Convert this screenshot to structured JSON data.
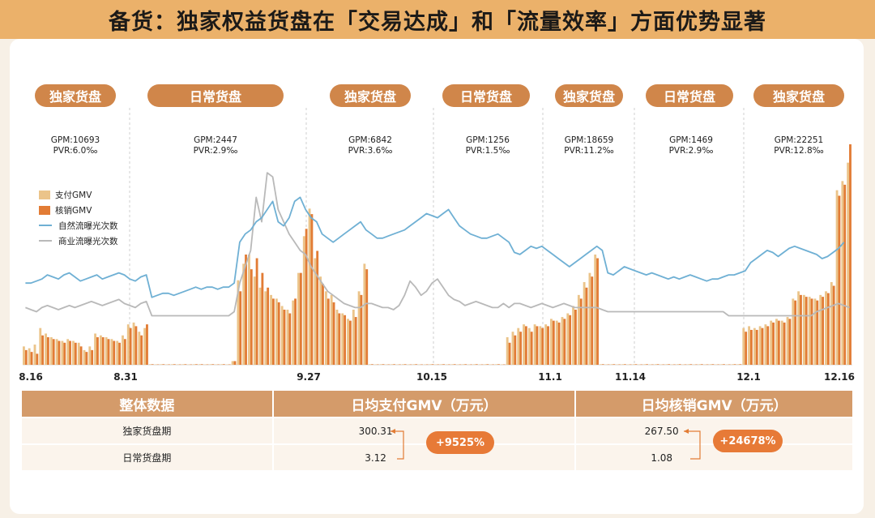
{
  "header": {
    "title": "备货：独家权益货盘在「交易达成」和「流量效率」方面优势显著"
  },
  "periods": [
    {
      "label": "独家货盘",
      "gpm": "GPM:10693",
      "pvr": "PVR:6.0‰"
    },
    {
      "label": "日常货盘",
      "gpm": "GPM:2447",
      "pvr": "PVR:2.9‰"
    },
    {
      "label": "独家货盘",
      "gpm": "GPM:6842",
      "pvr": "PVR:3.6‰"
    },
    {
      "label": "日常货盘",
      "gpm": "GPM:1256",
      "pvr": "PVR:1.5‰"
    },
    {
      "label": "独家货盘",
      "gpm": "GPM:18659",
      "pvr": "PVR:11.2‰"
    },
    {
      "label": "日常货盘",
      "gpm": "GPM:1469",
      "pvr": "PVR:2.9‰"
    },
    {
      "label": "独家货盘",
      "gpm": "GPM:22251",
      "pvr": "PVR:12.8‰"
    }
  ],
  "legend": {
    "pay_gmv": "支付GMV",
    "verify_gmv": "核销GMV",
    "natural": "自然流曝光次数",
    "commercial": "商业流曝光次数"
  },
  "x_labels": [
    "8.16",
    "8.31",
    "9.27",
    "10.15",
    "11.1",
    "11.14",
    "12.1",
    "12.16"
  ],
  "colors": {
    "pay_gmv": "#ebc48a",
    "verify_gmv": "#e27c35",
    "natural": "#6fb0d4",
    "commercial": "#b9b9b9",
    "pill": "#d0864a",
    "header": "#ebb16a"
  },
  "chart_data": {
    "type": "bar+line",
    "series": [
      {
        "name": "支付GMV",
        "type": "bar",
        "values": [
          10,
          9,
          11,
          20,
          17,
          15,
          14,
          13,
          14,
          13,
          12,
          8,
          10,
          17,
          16,
          15,
          14,
          13,
          16,
          22,
          23,
          18,
          20,
          0.3,
          0.2,
          0.3,
          0.2,
          0.3,
          0.2,
          0.3,
          0.2,
          0.3,
          0.3,
          0.2,
          0.3,
          0.2,
          0.3,
          0.2,
          2,
          46,
          55,
          60,
          48,
          42,
          40,
          38,
          36,
          32,
          30,
          35,
          50,
          70,
          85,
          58,
          48,
          40,
          38,
          30,
          28,
          25,
          30,
          40,
          55,
          0.3,
          0.2,
          0.3,
          0.2,
          0.3,
          0.2,
          0.3,
          0.2,
          0.3,
          0.2,
          0.2,
          0.3,
          0.2,
          0.3,
          0.2,
          0.3,
          0.2,
          0.3,
          0.2,
          0.3,
          0.2,
          0.3,
          0.2,
          0.3,
          0.2,
          15,
          18,
          20,
          22,
          20,
          22,
          21,
          22,
          25,
          24,
          26,
          28,
          32,
          38,
          45,
          50,
          60,
          0.3,
          0.2,
          0.3,
          0.2,
          0.3,
          0.2,
          0.3,
          0.2,
          0.3,
          0.2,
          0.3,
          0.2,
          0.3,
          0.2,
          0.3,
          0.2,
          0.3,
          0.2,
          0.3,
          0.2,
          0.3,
          0.2,
          0.3,
          0.2,
          0.3,
          0.3,
          20,
          21,
          20,
          21,
          22,
          24,
          25,
          24,
          26,
          36,
          40,
          38,
          37,
          36,
          38,
          40,
          45,
          95,
          100,
          110
        ]
      },
      {
        "name": "核销GMV",
        "type": "bar",
        "values": [
          8,
          7,
          6,
          16,
          15,
          14,
          13,
          12,
          13,
          12,
          10,
          7,
          8,
          15,
          15,
          14,
          13,
          12,
          14,
          20,
          21,
          16,
          22,
          0.3,
          0.2,
          0.3,
          0.2,
          0.3,
          0.2,
          0.3,
          0.2,
          0.3,
          0.3,
          0.2,
          0.3,
          0.2,
          0.3,
          0.2,
          2,
          40,
          60,
          52,
          58,
          50,
          42,
          36,
          34,
          30,
          28,
          36,
          50,
          74,
          82,
          62,
          44,
          36,
          34,
          28,
          27,
          24,
          26,
          38,
          52,
          0.3,
          0.2,
          0.3,
          0.2,
          0.3,
          0.2,
          0.3,
          0.2,
          0.3,
          0.2,
          0.2,
          0.3,
          0.2,
          0.3,
          0.2,
          0.3,
          0.2,
          0.3,
          0.2,
          0.3,
          0.2,
          0.3,
          0.2,
          0.3,
          0.2,
          12,
          16,
          18,
          21,
          18,
          21,
          20,
          21,
          24,
          23,
          25,
          27,
          30,
          36,
          42,
          48,
          58,
          0.3,
          0.2,
          0.3,
          0.2,
          0.3,
          0.2,
          0.3,
          0.2,
          0.3,
          0.2,
          0.3,
          0.2,
          0.3,
          0.2,
          0.3,
          0.2,
          0.3,
          0.2,
          0.3,
          0.2,
          0.3,
          0.2,
          0.3,
          0.2,
          0.3,
          0.3,
          18,
          19,
          19,
          20,
          21,
          23,
          24,
          23,
          25,
          35,
          38,
          37,
          36,
          35,
          37,
          39,
          43,
          92,
          98,
          120
        ]
      },
      {
        "name": "自然流曝光次数",
        "type": "line",
        "values": [
          40,
          40,
          41,
          42,
          44,
          43,
          42,
          44,
          45,
          43,
          41,
          42,
          43,
          44,
          42,
          43,
          44,
          45,
          44,
          42,
          41,
          43,
          44,
          33,
          34,
          35,
          35,
          34,
          35,
          36,
          37,
          38,
          37,
          38,
          38,
          37,
          38,
          38,
          40,
          60,
          64,
          66,
          70,
          72,
          76,
          80,
          70,
          68,
          72,
          80,
          82,
          76,
          72,
          70,
          64,
          62,
          60,
          62,
          64,
          66,
          68,
          70,
          66,
          64,
          62,
          62,
          63,
          64,
          65,
          66,
          68,
          70,
          72,
          74,
          73,
          72,
          74,
          76,
          72,
          68,
          66,
          64,
          63,
          62,
          62,
          63,
          64,
          62,
          60,
          55,
          54,
          56,
          58,
          57,
          58,
          56,
          54,
          52,
          50,
          48,
          50,
          52,
          54,
          56,
          58,
          56,
          45,
          44,
          46,
          48,
          47,
          46,
          45,
          44,
          45,
          44,
          43,
          42,
          43,
          42,
          43,
          44,
          43,
          42,
          41,
          42,
          42,
          43,
          44,
          44,
          45,
          46,
          50,
          52,
          54,
          56,
          55,
          53,
          55,
          57,
          58,
          57,
          56,
          55,
          54,
          52,
          53,
          55,
          57,
          60
        ]
      },
      {
        "name": "商业流曝光次数",
        "type": "line",
        "values": [
          28,
          27,
          26,
          28,
          29,
          28,
          27,
          28,
          29,
          28,
          29,
          30,
          31,
          30,
          29,
          30,
          31,
          32,
          30,
          29,
          28,
          30,
          31,
          24,
          24,
          24,
          24,
          24,
          24,
          24,
          24,
          24,
          24,
          24,
          24,
          24,
          24,
          24,
          26,
          40,
          48,
          56,
          82,
          70,
          94,
          92,
          76,
          70,
          64,
          60,
          56,
          54,
          48,
          44,
          40,
          36,
          34,
          32,
          30,
          29,
          28,
          28,
          30,
          30,
          29,
          28,
          28,
          27,
          29,
          34,
          41,
          38,
          34,
          36,
          40,
          42,
          38,
          34,
          32,
          31,
          29,
          30,
          31,
          30,
          29,
          28,
          28,
          30,
          28,
          30,
          30,
          29,
          28,
          29,
          30,
          29,
          28,
          29,
          30,
          29,
          28,
          28,
          28,
          28,
          28,
          27,
          26,
          26,
          26,
          26,
          26,
          26,
          26,
          26,
          26,
          26,
          26,
          26,
          26,
          26,
          26,
          26,
          26,
          26,
          26,
          26,
          26,
          26,
          24,
          24,
          24,
          24,
          24,
          24,
          24,
          24,
          24,
          24,
          24,
          24,
          24,
          24,
          24,
          24,
          26,
          27,
          28,
          29,
          30,
          29,
          28
        ]
      }
    ],
    "x_labels": [
      "8.16",
      "8.31",
      "9.27",
      "10.15",
      "11.1",
      "11.14",
      "12.1",
      "12.16"
    ]
  },
  "table": {
    "headers": [
      "整体数据",
      "日均支付GMV（万元）",
      "日均核销GMV（万元）"
    ],
    "rows": [
      {
        "label": "独家货盘期",
        "pay": "300.31",
        "verify": "267.50"
      },
      {
        "label": "日常货盘期",
        "pay": "3.12",
        "verify": "1.08"
      }
    ],
    "badges": {
      "pay_growth": "+9525%",
      "verify_growth": "+24678%"
    }
  }
}
